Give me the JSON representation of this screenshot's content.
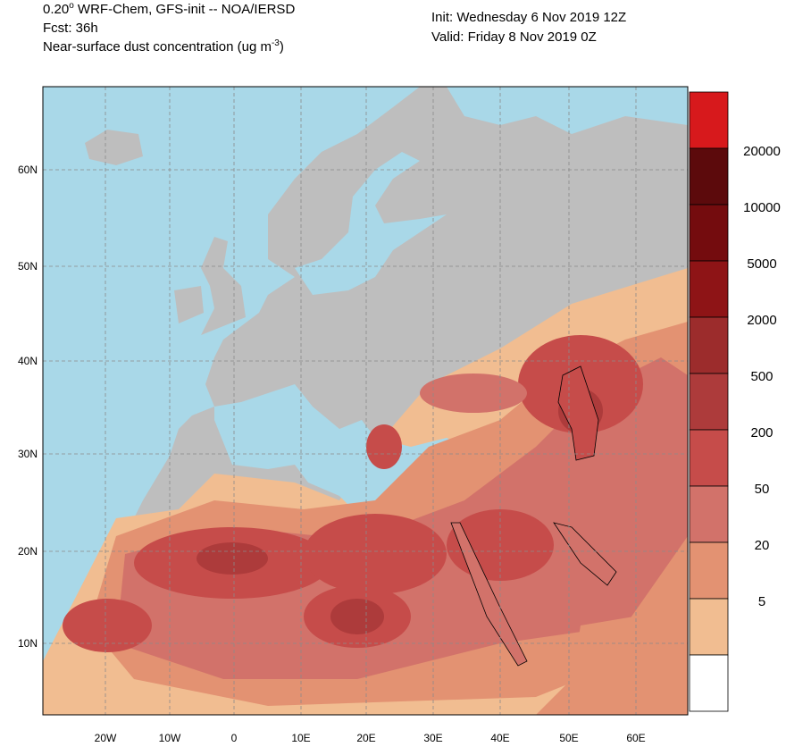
{
  "header": {
    "title_main": "0.20",
    "title_deg": "o",
    "title_rest": " WRF-Chem, GFS-init -- NOA/IERSD",
    "forecast": "Fcst: 36h",
    "variable": "Near-surface dust concentration (ug m",
    "variable_exp": "-3",
    "variable_end": ")",
    "init": "Init: Wednesday 6 Nov 2019  12Z",
    "valid": "Valid: Friday 8 Nov 2019  0Z"
  },
  "map": {
    "lat_labels": [
      "60N",
      "50N",
      "40N",
      "30N",
      "20N",
      "10N"
    ],
    "lon_labels": [
      "20W",
      "10W",
      "0",
      "10E",
      "20E",
      "30E",
      "40E",
      "50E",
      "60E"
    ]
  },
  "legend": {
    "colors": [
      "#d7191c",
      "#5c0a0c",
      "#740c0e",
      "#8e1416",
      "#9c2c2c",
      "#ad3b3b",
      "#c64c4a",
      "#d2726a",
      "#e39272",
      "#f1bd91",
      "#ffffff"
    ],
    "labels": [
      "20000",
      "10000",
      "5000",
      "2000",
      "500",
      "200",
      "50",
      "20",
      "5"
    ]
  }
}
